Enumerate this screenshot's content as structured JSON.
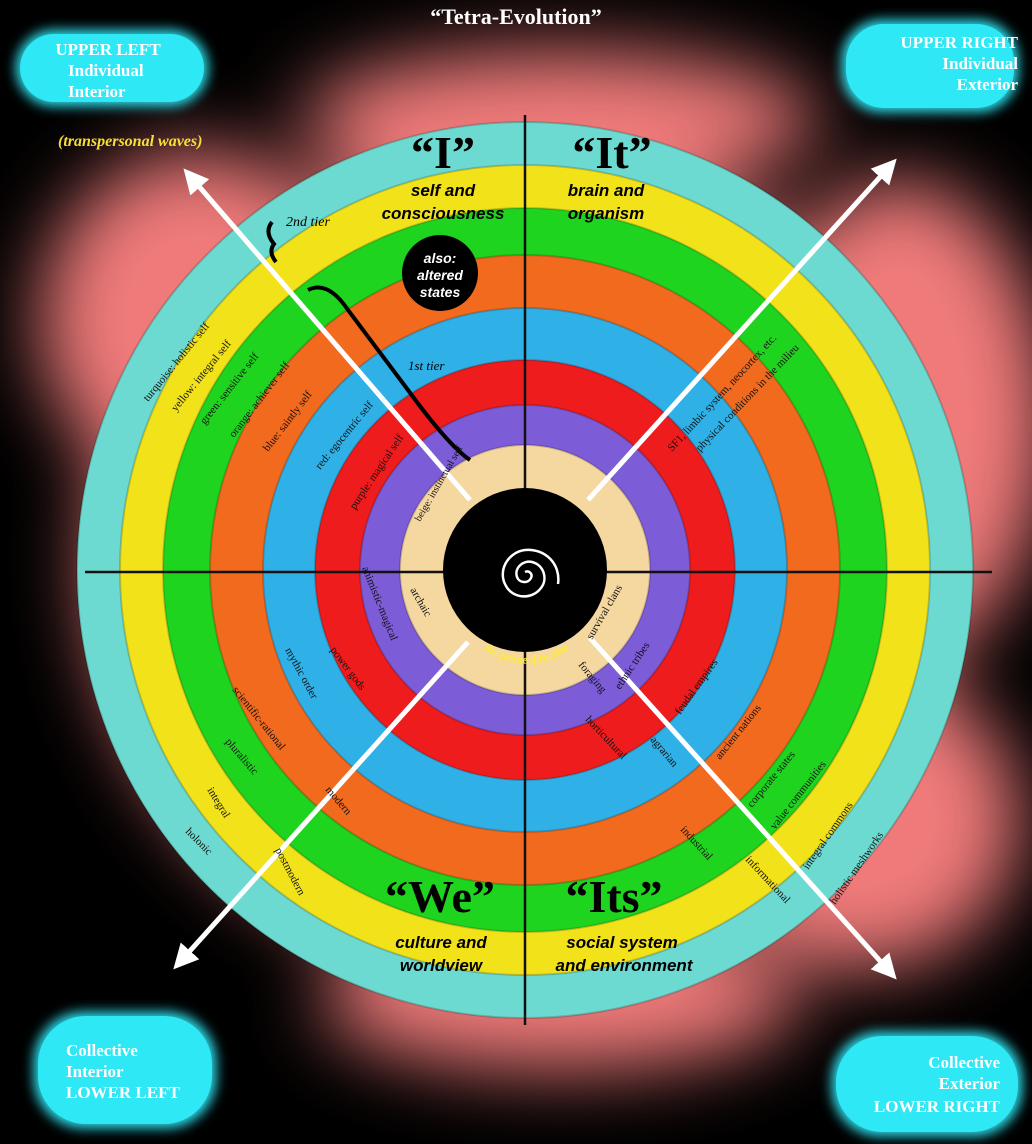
{
  "title": "“Tetra-Evolution”",
  "corners": {
    "upper_left": [
      "UPPER LEFT",
      "Individual",
      "Interior"
    ],
    "upper_right": [
      "UPPER RIGHT",
      "Individual",
      "Exterior"
    ],
    "lower_left": [
      "Collective",
      "Interior",
      "LOWER LEFT"
    ],
    "lower_right": [
      "Collective",
      "Exterior",
      "LOWER RIGHT"
    ]
  },
  "quadrants": {
    "I": {
      "label": "“I”",
      "sub1": "self and",
      "sub2": "consciousness"
    },
    "It": {
      "label": "“It”",
      "sub1": "brain and",
      "sub2": "organism"
    },
    "We": {
      "label": "“We”",
      "sub1": "culture and",
      "sub2": "worldview"
    },
    "Its": {
      "label": "“Its”",
      "sub1": "social system",
      "sub2": "and environment"
    }
  },
  "annotations": {
    "transpersonal": "(transpersonal waves)",
    "second_tier": "2nd tier",
    "first_tier": "1st tier",
    "altered_1": "also:",
    "altered_2": "altered",
    "altered_3": "states",
    "prime_directive": "the prime directive"
  },
  "ring_colors": [
    "#f5d7a0",
    "#7d5cd8",
    "#ee1c1c",
    "#2fb0e6",
    "#f26a1e",
    "#1fd41f",
    "#f2e21a",
    "#6cdad0"
  ],
  "upper_left_labels": [
    "turquoise: holistic self",
    "yellow: integral self",
    "green: sensitive self",
    "orange: achiever self",
    "blue: saintly self",
    "red: egocentric self",
    "purple: magical self",
    "beige: instinctual self"
  ],
  "upper_right_labels": [
    "SF1, limbic system, neocortex, etc.",
    "physical conditions in the milieu"
  ],
  "lower_left_labels": [
    "archaic",
    "animistic-magical",
    "power gods",
    "mythic order",
    "scientific-rational",
    "pluralistic",
    "integral",
    "holonic",
    "modern",
    "postmodern"
  ],
  "lower_right_labels": [
    "survival clans",
    "ethnic tribes",
    "feudal empires",
    "ancient nations",
    "corporate states",
    "value communities",
    "integral commons",
    "holistic meshworks",
    "foraging",
    "horticultural",
    "agrarian",
    "industrial",
    "informational"
  ]
}
